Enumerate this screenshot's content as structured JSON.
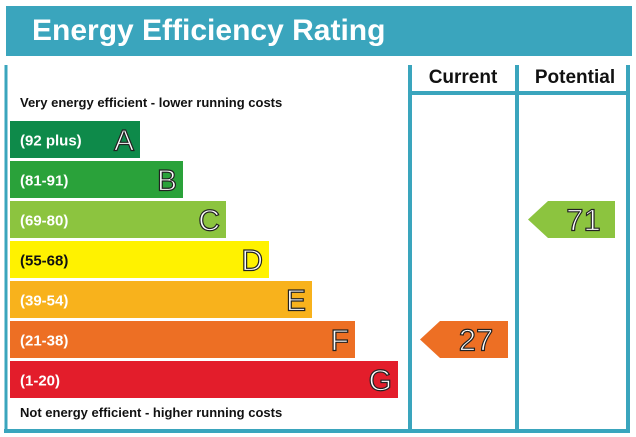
{
  "title": "Energy Efficiency Rating",
  "top_note": "Very energy efficient - lower running costs",
  "bottom_note": "Not energy efficient - higher running costs",
  "columns": {
    "current": "Current",
    "potential": "Potential"
  },
  "colors": {
    "header": "#3aa5bd",
    "frame": "#3aa5bd"
  },
  "chart_data": {
    "type": "bar",
    "title": "Energy Efficiency Rating",
    "bands": [
      {
        "letter": "A",
        "range": "(92 plus)",
        "color": "#0e8a4a",
        "level": 1
      },
      {
        "letter": "B",
        "range": "(81-91)",
        "color": "#2aa23a",
        "level": 2
      },
      {
        "letter": "C",
        "range": "(69-80)",
        "color": "#8cc43f",
        "level": 3
      },
      {
        "letter": "D",
        "range": "(55-68)",
        "color": "#fff200",
        "level": 4
      },
      {
        "letter": "E",
        "range": "(39-54)",
        "color": "#f8b21c",
        "level": 5
      },
      {
        "letter": "F",
        "range": "(21-38)",
        "color": "#ed6f24",
        "level": 6
      },
      {
        "letter": "G",
        "range": "(1-20)",
        "color": "#e31d2b",
        "level": 7
      }
    ],
    "ratings": [
      {
        "column": "Current",
        "value": 27,
        "band": "F",
        "color": "#ed6f24"
      },
      {
        "column": "Potential",
        "value": 71,
        "band": "C",
        "color": "#8cc43f"
      }
    ]
  }
}
